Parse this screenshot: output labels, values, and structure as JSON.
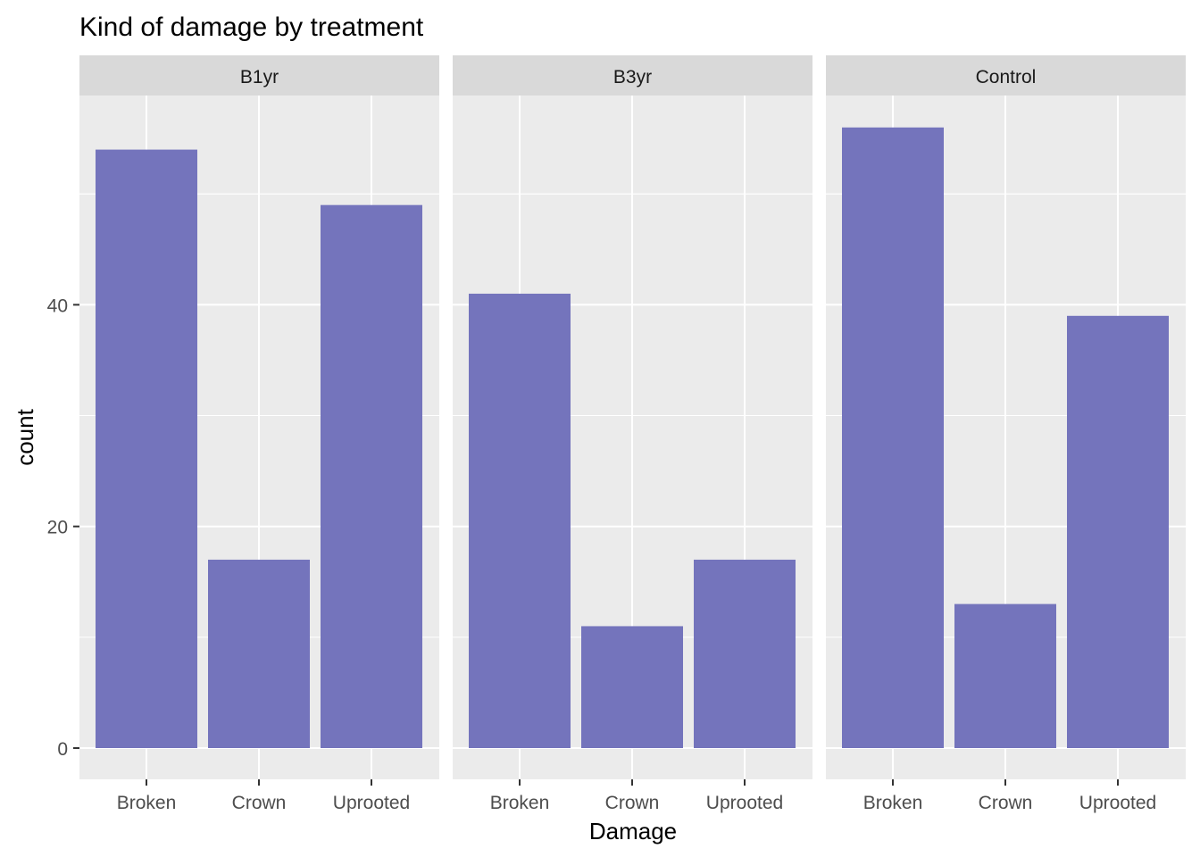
{
  "chart_data": {
    "type": "bar",
    "title": "Kind of damage by treatment",
    "xlabel": "Damage",
    "ylabel": "count",
    "categories": [
      "Broken",
      "Crown",
      "Uprooted"
    ],
    "facets": [
      {
        "name": "B1yr",
        "values": [
          54,
          17,
          49
        ]
      },
      {
        "name": "B3yr",
        "values": [
          41,
          11,
          17
        ]
      },
      {
        "name": "Control",
        "values": [
          56,
          13,
          39
        ]
      }
    ],
    "ylim": [
      0,
      58
    ],
    "yticks": [
      0,
      20,
      40
    ],
    "grid": true,
    "bar_color": "#7474bc",
    "panel_background": "#ebebeb",
    "strip_background": "#d9d9d9"
  }
}
